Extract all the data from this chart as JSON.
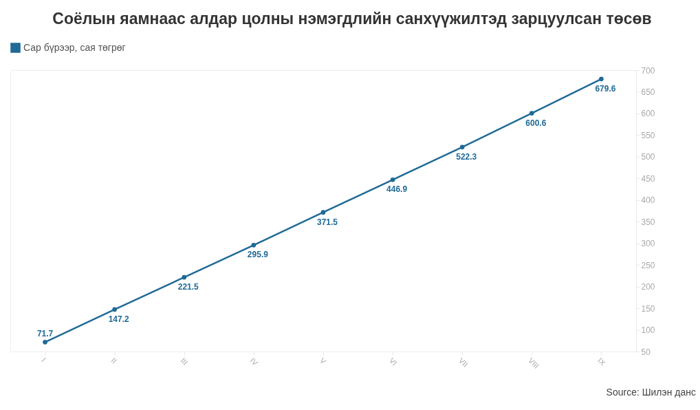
{
  "chart_data": {
    "type": "line",
    "title": "Соёлын яамнаас алдар цолны нэмэгдлийн санхүүжилтэд зарцуулсан төсөв",
    "annotations": [
      "Source: Шилэн данс"
    ],
    "categories": [
      "I",
      "II",
      "III",
      "IV",
      "V",
      "VI",
      "VII",
      "VIII",
      "IX"
    ],
    "series": [
      {
        "name": "Сар бүрээр, сая төгрөг",
        "color": "#1f6a96",
        "values": [
          71.7,
          147.2,
          221.5,
          295.9,
          371.5,
          446.9,
          522.3,
          600.6,
          679.6
        ]
      }
    ],
    "ylim": [
      50,
      700
    ],
    "yticks": [
      50,
      100,
      150,
      200,
      250,
      300,
      350,
      400,
      450,
      500,
      550,
      600,
      650,
      700
    ],
    "data_labels": true,
    "grid": false,
    "legend": "top left",
    "marker": "circle"
  }
}
